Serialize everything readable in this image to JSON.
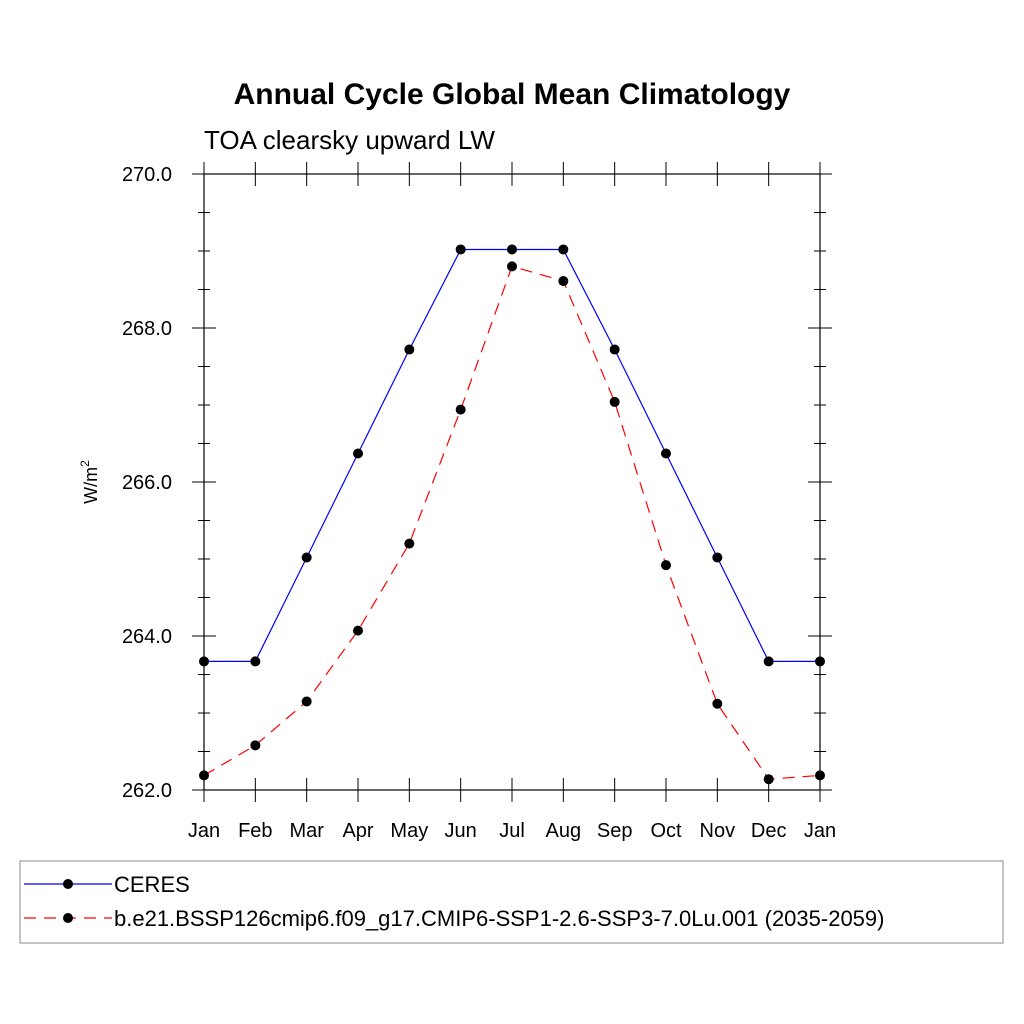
{
  "chart_data": {
    "type": "line",
    "title": "Annual Cycle Global Mean Climatology",
    "subtitle": "TOA clearsky upward LW",
    "ylabel": "W/m",
    "ylabel_superscript": "2",
    "ylim": [
      262.0,
      270.0
    ],
    "ytick_labels": [
      "262.0",
      "264.0",
      "266.0",
      "268.0",
      "270.0"
    ],
    "categories": [
      "Jan",
      "Feb",
      "Mar",
      "Apr",
      "May",
      "Jun",
      "Jul",
      "Aug",
      "Sep",
      "Oct",
      "Nov",
      "Dec",
      "Jan"
    ],
    "series": [
      {
        "name": "CERES",
        "color": "#0000ff",
        "dash": "solid",
        "values": [
          263.67,
          263.67,
          265.02,
          266.37,
          267.72,
          269.02,
          269.02,
          269.02,
          267.72,
          266.37,
          265.02,
          263.67,
          263.67
        ]
      },
      {
        "name": "b.e21.BSSP126cmip6.f09_g17.CMIP6-SSP1-2.6-SSP3-7.0Lu.001 (2035-2059)",
        "color": "#ff0000",
        "dash": "dashed",
        "values": [
          262.19,
          262.58,
          263.15,
          264.07,
          265.2,
          266.94,
          268.8,
          268.61,
          267.04,
          264.92,
          263.12,
          262.14,
          262.19
        ]
      }
    ],
    "grid": false,
    "legend_position": "bottom"
  }
}
